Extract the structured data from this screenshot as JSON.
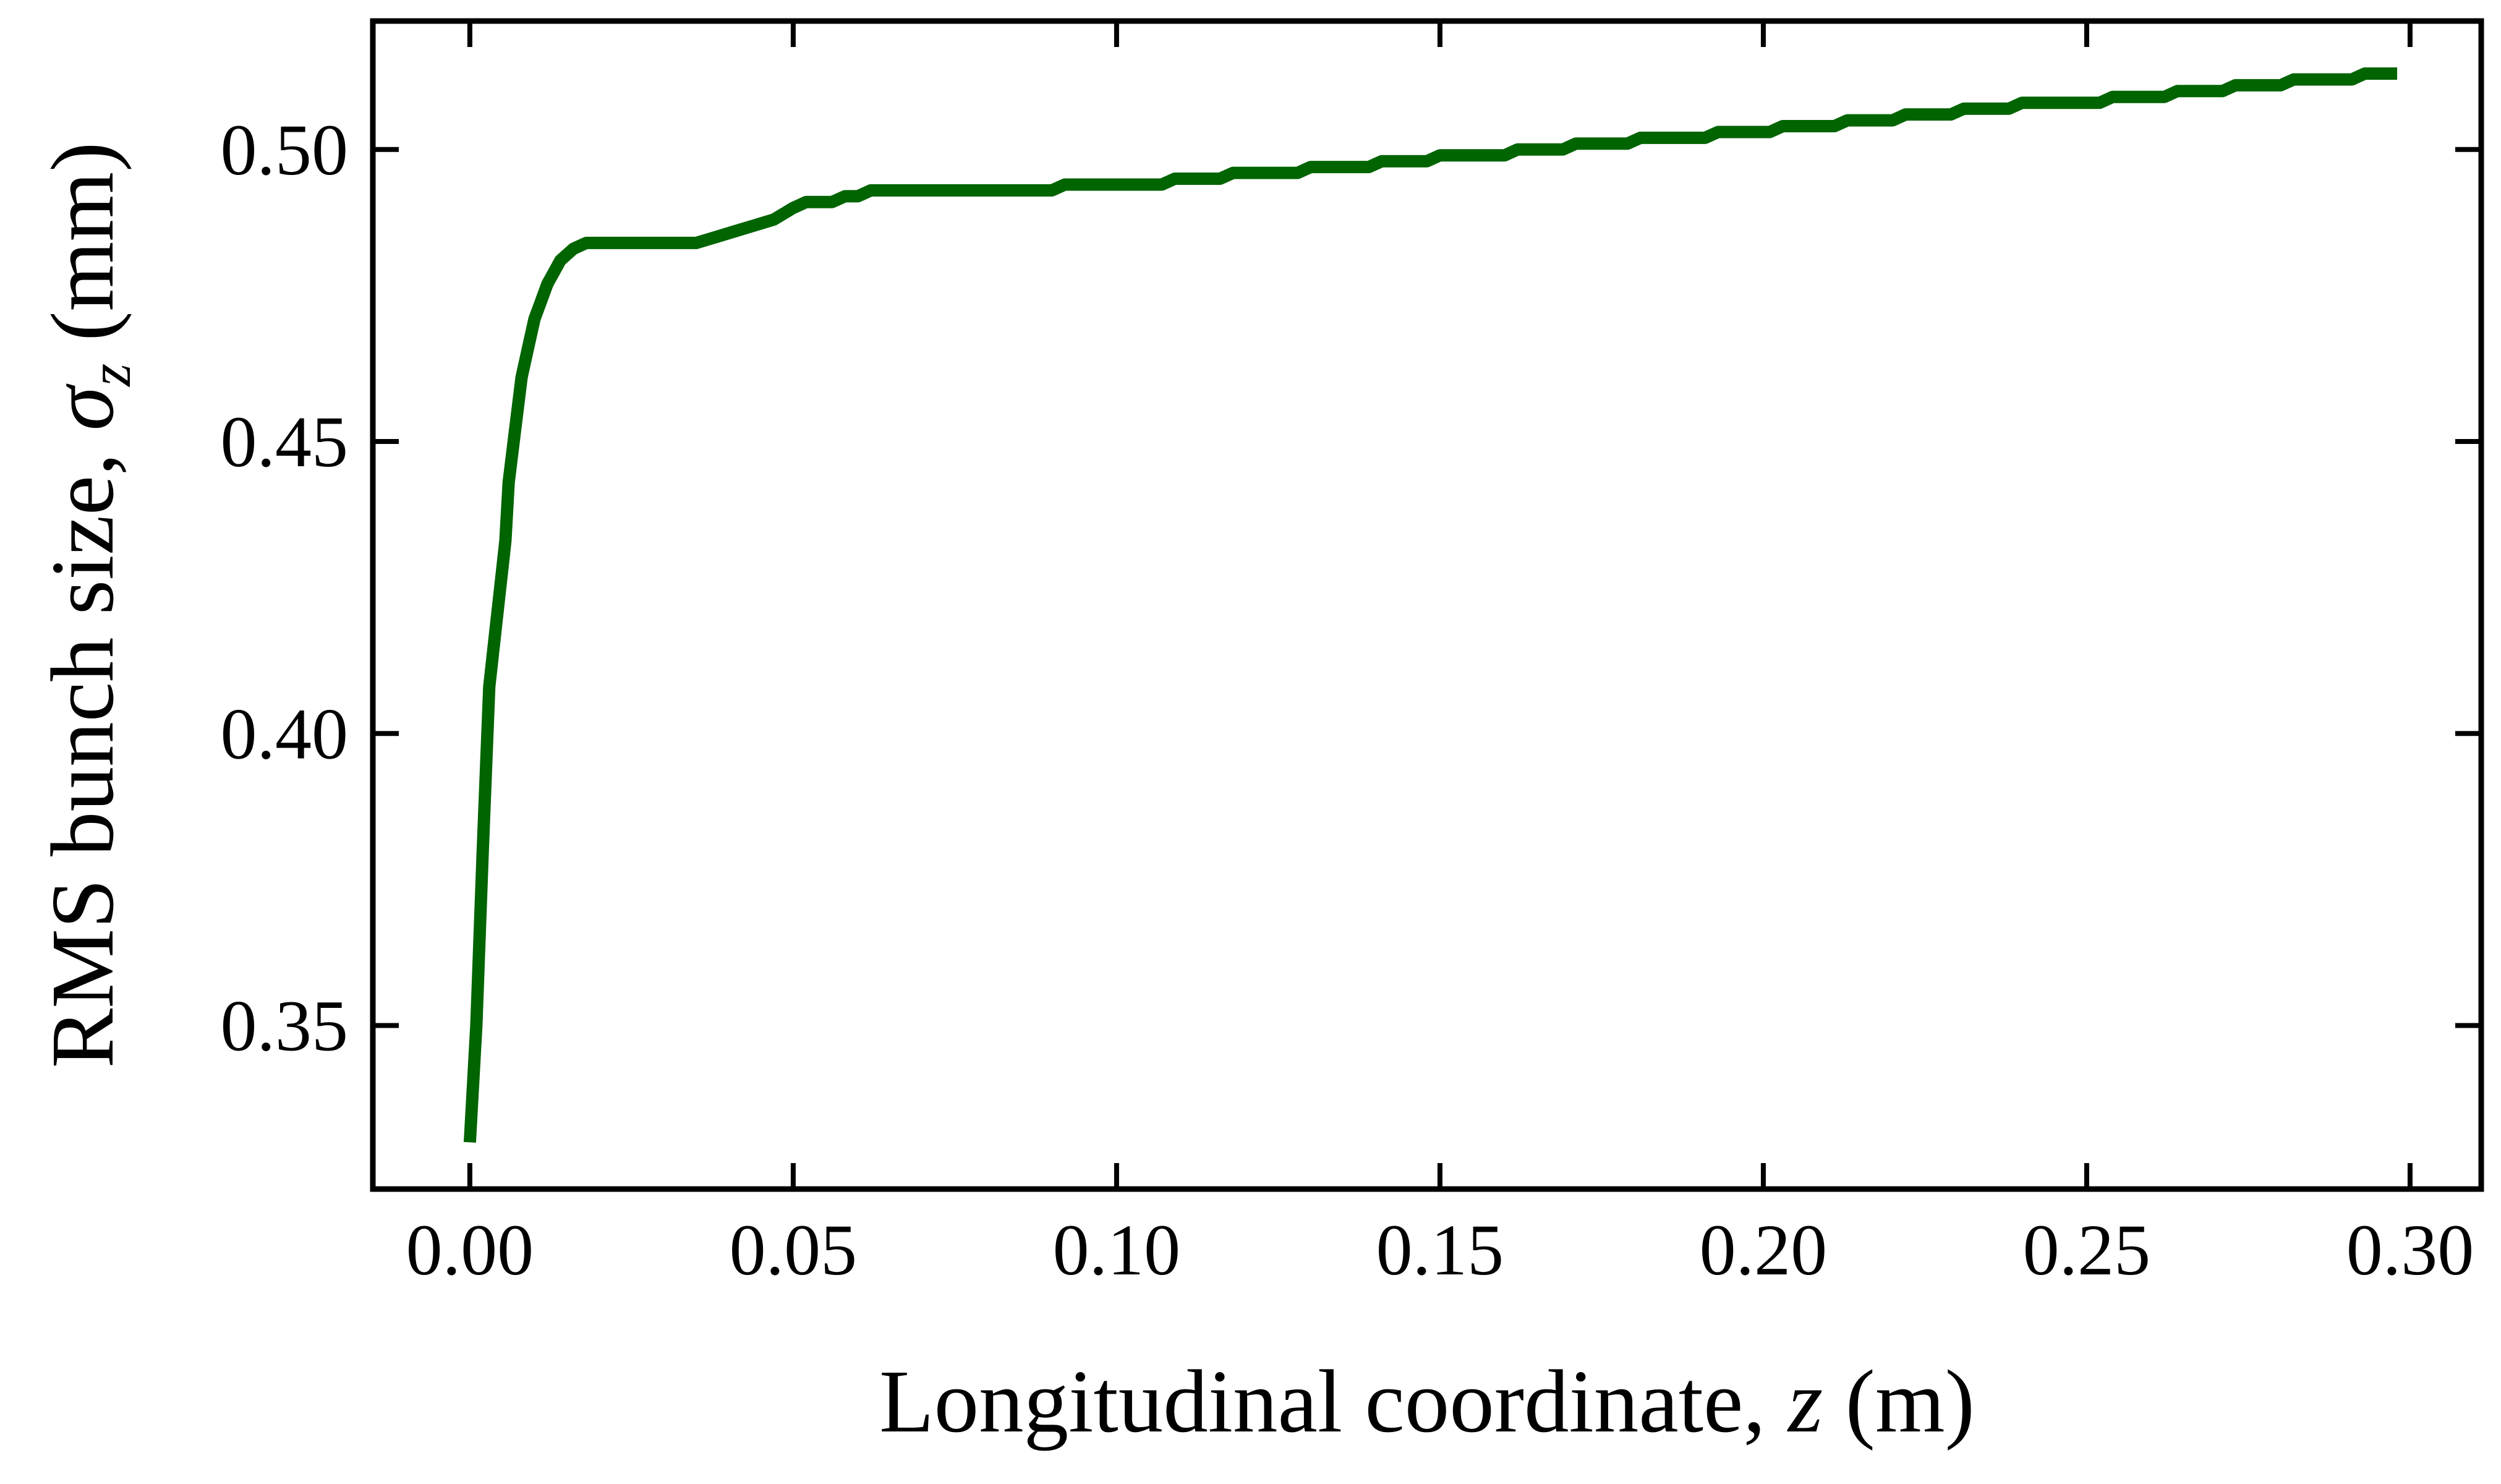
{
  "chart_data": {
    "type": "line",
    "title": "",
    "xlabel": "Longitudinal coordinate, z (m)",
    "ylabel": "RMS bunch size, σ_z (mm)",
    "xlabel_parts": {
      "text": "Longitudinal coordinate, ",
      "var": "z",
      "unit": " (m)"
    },
    "ylabel_parts": {
      "text": "RMS bunch size, ",
      "var": "σ",
      "sub": "z",
      "unit": " (mm)"
    },
    "xlim": [
      -0.015,
      0.311
    ],
    "ylim": [
      0.322,
      0.522
    ],
    "x_ticks": [
      0.0,
      0.05,
      0.1,
      0.15,
      0.2,
      0.25,
      0.3
    ],
    "x_tick_labels": [
      "0.00",
      "0.05",
      "0.10",
      "0.15",
      "0.20",
      "0.25",
      "0.30"
    ],
    "y_ticks": [
      0.35,
      0.4,
      0.45,
      0.5
    ],
    "y_tick_labels": [
      "0.35",
      "0.40",
      "0.45",
      "0.50"
    ],
    "grid": false,
    "series": [
      {
        "color": "#006400",
        "x": [
          0.0,
          0.001,
          0.002,
          0.003,
          0.004,
          0.005,
          0.0055,
          0.006,
          0.007,
          0.008,
          0.009,
          0.01,
          0.011,
          0.012,
          0.013,
          0.014,
          0.016,
          0.018,
          0.02,
          0.022,
          0.024,
          0.026,
          0.028,
          0.03,
          0.032,
          0.034,
          0.035,
          0.038,
          0.041,
          0.044,
          0.047,
          0.05,
          0.052,
          0.054,
          0.056,
          0.058,
          0.06,
          0.062,
          0.064,
          0.066,
          0.068,
          0.07,
          0.08,
          0.088,
          0.09,
          0.092,
          0.1,
          0.105,
          0.107,
          0.109,
          0.114,
          0.116,
          0.118,
          0.126,
          0.128,
          0.13,
          0.137,
          0.139,
          0.141,
          0.146,
          0.148,
          0.15,
          0.158,
          0.16,
          0.162,
          0.167,
          0.169,
          0.171,
          0.177,
          0.179,
          0.181,
          0.189,
          0.191,
          0.193,
          0.199,
          0.201,
          0.203,
          0.209,
          0.211,
          0.213,
          0.218,
          0.22,
          0.222,
          0.227,
          0.229,
          0.231,
          0.236,
          0.238,
          0.24,
          0.25,
          0.252,
          0.254,
          0.26,
          0.262,
          0.264,
          0.269,
          0.271,
          0.273,
          0.278,
          0.28,
          0.282,
          0.289,
          0.291,
          0.293,
          0.298
        ],
        "y": [
          0.33,
          0.35,
          0.38,
          0.408,
          0.418,
          0.428,
          0.433,
          0.443,
          0.452,
          0.461,
          0.466,
          0.471,
          0.474,
          0.477,
          0.479,
          0.481,
          0.483,
          0.484,
          0.484,
          0.484,
          0.484,
          0.484,
          0.484,
          0.484,
          0.484,
          0.484,
          0.484,
          0.485,
          0.486,
          0.487,
          0.488,
          0.49,
          0.491,
          0.491,
          0.491,
          0.492,
          0.492,
          0.493,
          0.493,
          0.493,
          0.493,
          0.493,
          0.493,
          0.493,
          0.493,
          0.494,
          0.494,
          0.494,
          0.494,
          0.495,
          0.495,
          0.495,
          0.496,
          0.496,
          0.496,
          0.497,
          0.497,
          0.497,
          0.498,
          0.498,
          0.498,
          0.499,
          0.499,
          0.499,
          0.5,
          0.5,
          0.5,
          0.501,
          0.501,
          0.501,
          0.502,
          0.502,
          0.502,
          0.503,
          0.503,
          0.503,
          0.504,
          0.504,
          0.504,
          0.505,
          0.505,
          0.505,
          0.506,
          0.506,
          0.506,
          0.507,
          0.507,
          0.507,
          0.508,
          0.508,
          0.508,
          0.509,
          0.509,
          0.509,
          0.51,
          0.51,
          0.51,
          0.511,
          0.511,
          0.511,
          0.512,
          0.512,
          0.512,
          0.513,
          0.513
        ]
      }
    ]
  }
}
